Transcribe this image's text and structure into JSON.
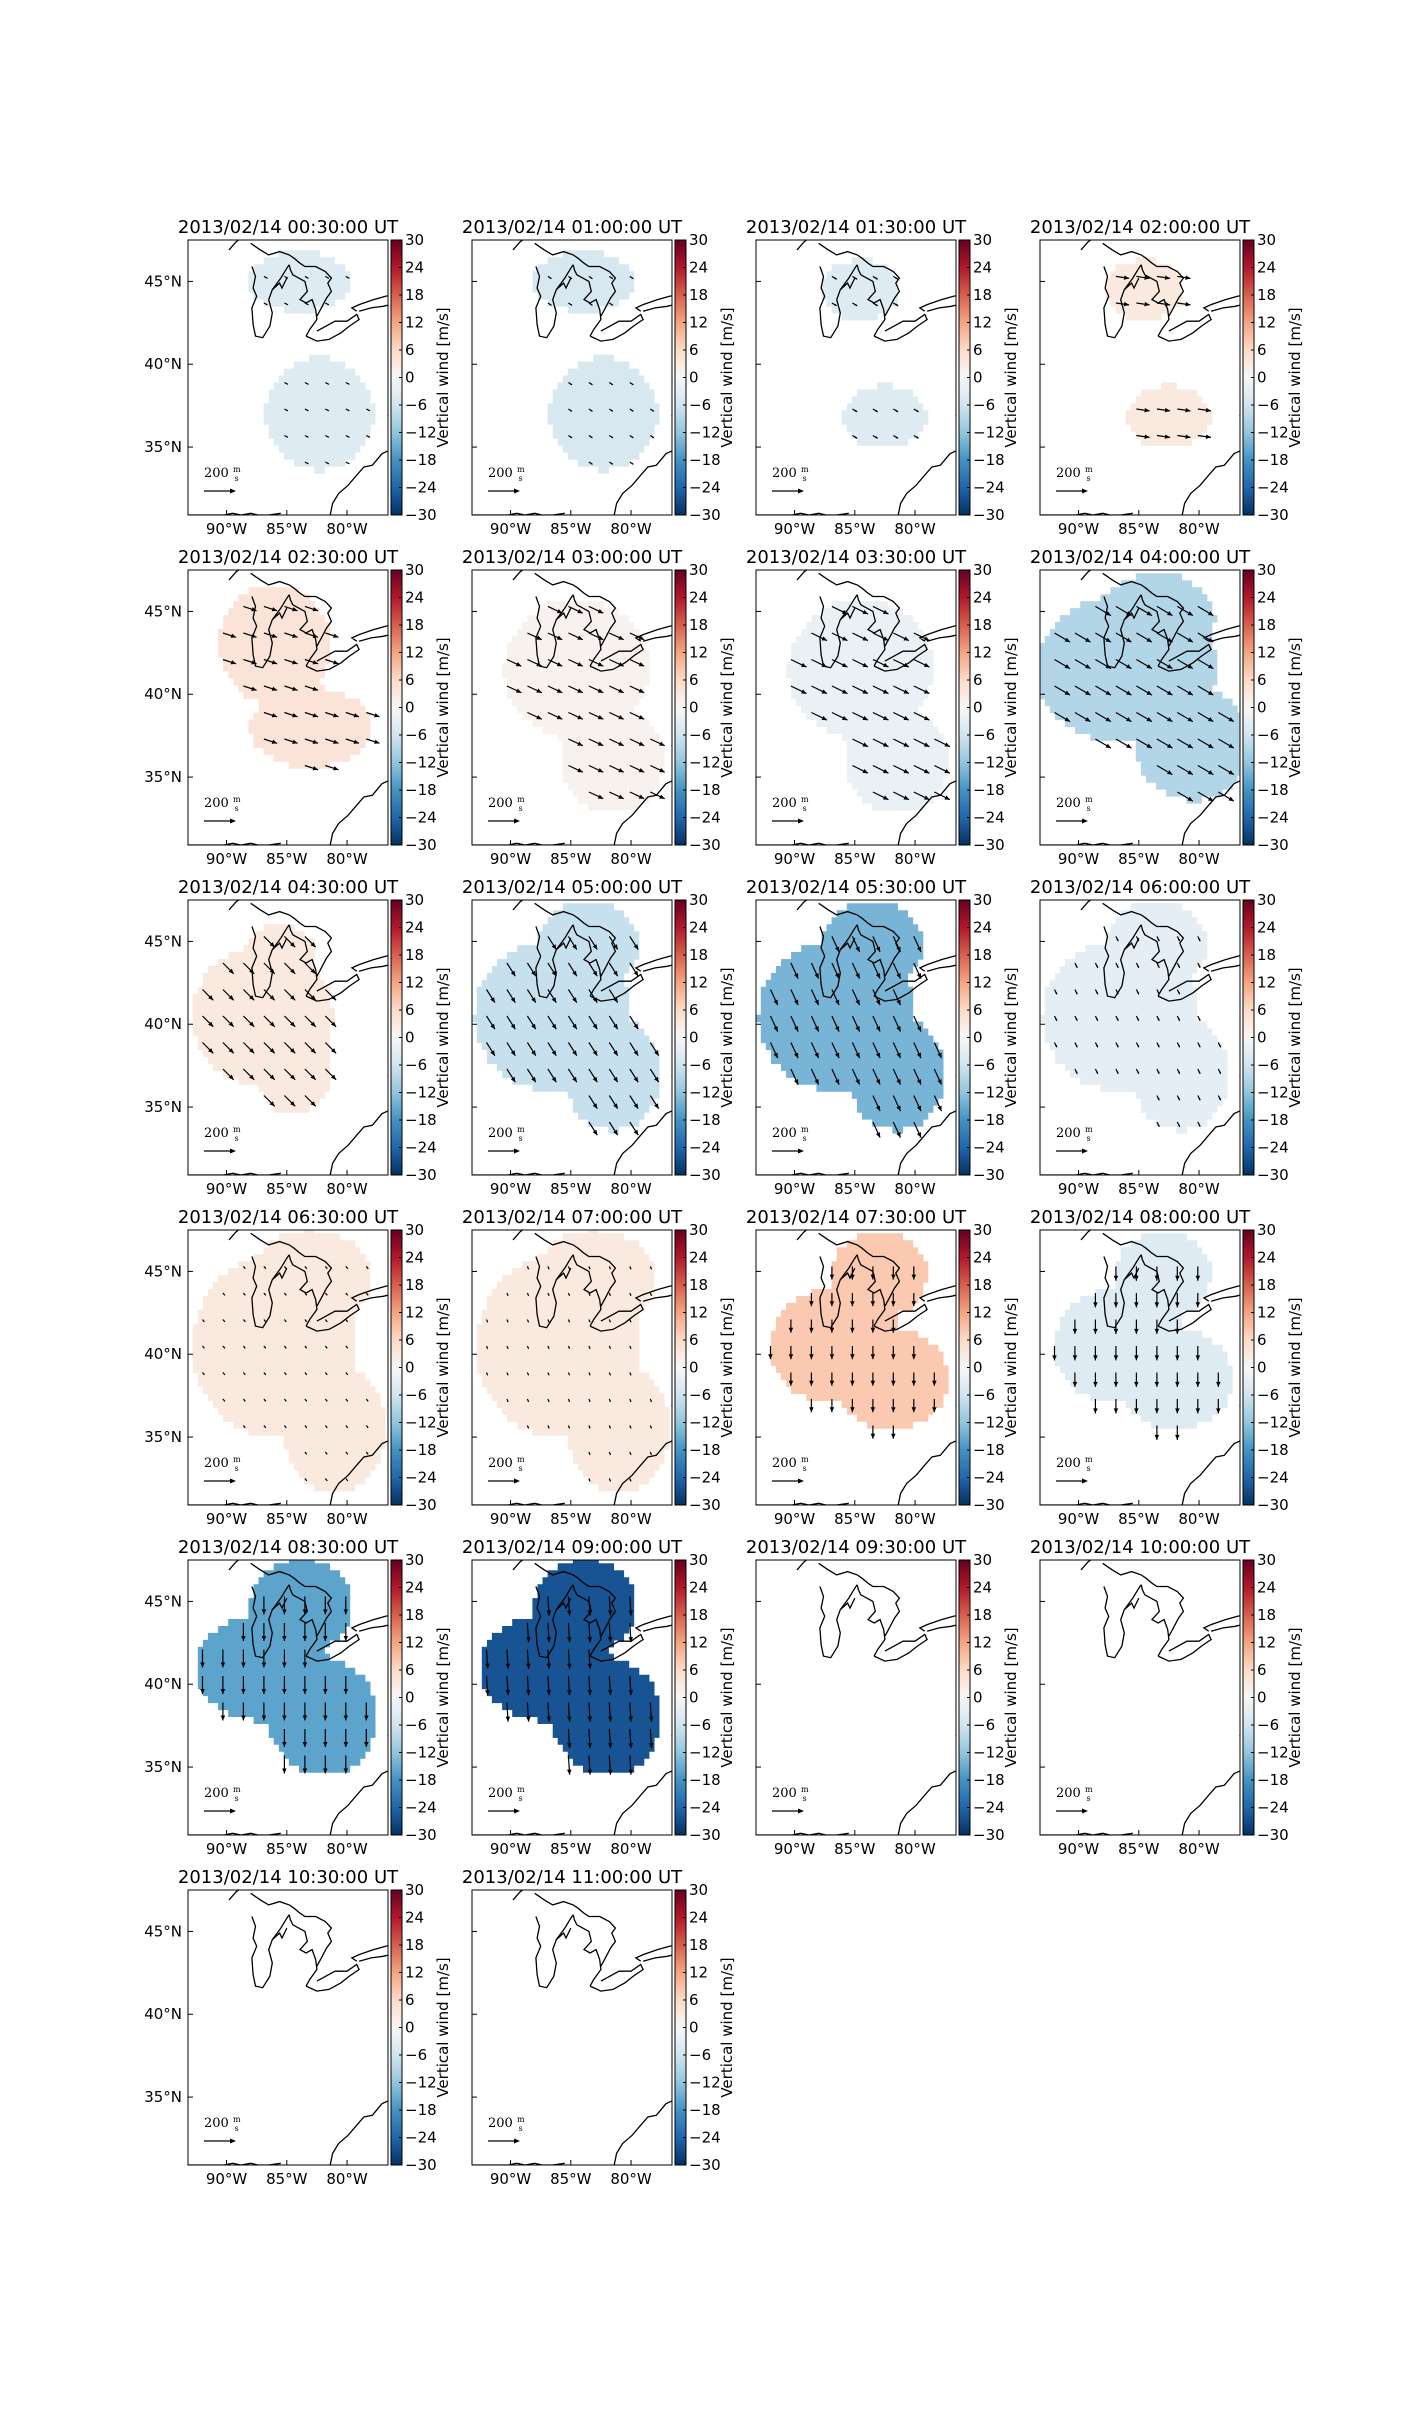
{
  "figure": {
    "type": "map-panel-grid",
    "colorbar": {
      "label": "Vertical wind [m/s]",
      "ticks": [
        30,
        24,
        18,
        12,
        6,
        0,
        -6,
        -12,
        -18,
        -24,
        -30
      ],
      "range": [
        -30,
        30
      ],
      "colormap": "RdBu_r",
      "colors": [
        "#053061",
        "#2166ac",
        "#4393c3",
        "#92c5de",
        "#d1e5f0",
        "#f7f7f7",
        "#fddbc7",
        "#f4a582",
        "#d6604d",
        "#b2182b",
        "#67001f"
      ]
    },
    "lon_ticks": [
      "90°W",
      "85°W",
      "80°W"
    ],
    "lat_ticks": [
      "45°N",
      "40°N",
      "35°N"
    ],
    "quiver_key": {
      "value": "200",
      "unit_num": "m",
      "unit_den": "s"
    },
    "panels": [
      {
        "title": "2013/02/14 00:30:00 UT",
        "w": -4,
        "shape": "split",
        "arrow": [
          0.15,
          -0.08
        ],
        "show_left_lat": true,
        "show_right_label": false
      },
      {
        "title": "2013/02/14 01:00:00 UT",
        "w": -5,
        "shape": "split",
        "arrow": [
          0.15,
          -0.1
        ],
        "show_left_lat": false,
        "show_right_label": false
      },
      {
        "title": "2013/02/14 01:30:00 UT",
        "w": -4,
        "shape": "split_small",
        "arrow": [
          0.2,
          -0.12
        ],
        "show_left_lat": false,
        "show_right_label": false
      },
      {
        "title": "2013/02/14 02:00:00 UT",
        "w": 3,
        "shape": "split_small",
        "arrow": [
          0.55,
          -0.08
        ],
        "show_left_lat": false,
        "show_right_label": true
      },
      {
        "title": "2013/02/14 02:30:00 UT",
        "w": 4,
        "shape": "blob_a",
        "arrow": [
          0.55,
          -0.18
        ],
        "show_left_lat": true,
        "show_right_label": false
      },
      {
        "title": "2013/02/14 03:00:00 UT",
        "w": 1,
        "shape": "blob_b",
        "arrow": [
          0.6,
          -0.28
        ],
        "show_left_lat": false,
        "show_right_label": false
      },
      {
        "title": "2013/02/14 03:30:00 UT",
        "w": -2,
        "shape": "blob_b",
        "arrow": [
          0.65,
          -0.32
        ],
        "show_left_lat": false,
        "show_right_label": false
      },
      {
        "title": "2013/02/14 04:00:00 UT",
        "w": -9,
        "shape": "blob_c",
        "arrow": [
          0.65,
          -0.38
        ],
        "show_left_lat": false,
        "show_right_label": true
      },
      {
        "title": "2013/02/14 04:30:00 UT",
        "w": 3,
        "shape": "blob_d",
        "arrow": [
          0.45,
          -0.45
        ],
        "show_left_lat": true,
        "show_right_label": false
      },
      {
        "title": "2013/02/14 05:00:00 UT",
        "w": -7,
        "shape": "blob_e",
        "arrow": [
          0.35,
          -0.55
        ],
        "show_left_lat": false,
        "show_right_label": false
      },
      {
        "title": "2013/02/14 05:30:00 UT",
        "w": -14,
        "shape": "blob_e",
        "arrow": [
          0.3,
          -0.65
        ],
        "show_left_lat": false,
        "show_right_label": false
      },
      {
        "title": "2013/02/14 06:00:00 UT",
        "w": -3,
        "shape": "blob_e",
        "arrow": [
          0.1,
          -0.2
        ],
        "show_left_lat": false,
        "show_right_label": true
      },
      {
        "title": "2013/02/14 06:30:00 UT",
        "w": 3,
        "shape": "blob_f",
        "arrow": [
          0.08,
          -0.1
        ],
        "show_left_lat": true,
        "show_right_label": false
      },
      {
        "title": "2013/02/14 07:00:00 UT",
        "w": 3,
        "shape": "blob_f",
        "arrow": [
          0.05,
          -0.12
        ],
        "show_left_lat": false,
        "show_right_label": false
      },
      {
        "title": "2013/02/14 07:30:00 UT",
        "w": 8,
        "shape": "blob_g",
        "arrow": [
          0.0,
          -0.55
        ],
        "show_left_lat": false,
        "show_right_label": false
      },
      {
        "title": "2013/02/14 08:00:00 UT",
        "w": -4,
        "shape": "blob_g",
        "arrow": [
          0.0,
          -0.6
        ],
        "show_left_lat": false,
        "show_right_label": true
      },
      {
        "title": "2013/02/14 08:30:00 UT",
        "w": -16,
        "shape": "blob_h",
        "arrow": [
          0.0,
          -0.75
        ],
        "show_left_lat": true,
        "show_right_label": false
      },
      {
        "title": "2013/02/14 09:00:00 UT",
        "w": -26,
        "shape": "blob_h",
        "arrow": [
          0.05,
          -0.8
        ],
        "show_left_lat": false,
        "show_right_label": false
      },
      {
        "title": "2013/02/14 09:30:00 UT",
        "w": null,
        "shape": "none",
        "arrow": [
          0,
          0
        ],
        "show_left_lat": false,
        "show_right_label": false
      },
      {
        "title": "2013/02/14 10:00:00 UT",
        "w": null,
        "shape": "none",
        "arrow": [
          0,
          0
        ],
        "show_left_lat": false,
        "show_right_label": true
      },
      {
        "title": "2013/02/14 10:30:00 UT",
        "w": null,
        "shape": "none",
        "arrow": [
          0,
          0
        ],
        "show_left_lat": true,
        "show_right_label": false
      },
      {
        "title": "2013/02/14 11:00:00 UT",
        "w": null,
        "shape": "none",
        "arrow": [
          0,
          0
        ],
        "show_left_lat": false,
        "show_right_label": true
      }
    ]
  }
}
